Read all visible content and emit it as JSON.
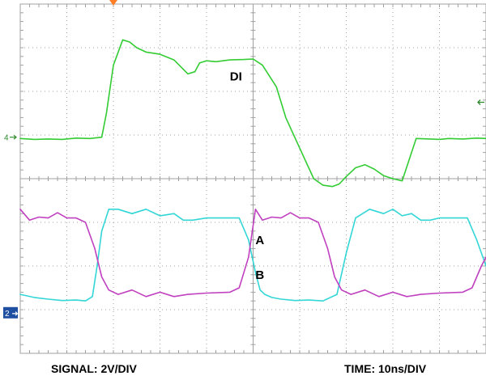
{
  "chart_data": {
    "type": "line",
    "screen": {
      "x_divisions": 10,
      "y_divisions": 8,
      "x_range_ns": [
        0,
        100
      ],
      "y_range_div": [
        0,
        8
      ],
      "grid": true,
      "grid_color": "#a0a0a0",
      "background": "#ffffff"
    },
    "channel_markers": [
      {
        "id": "channel-4-marker",
        "label": "4",
        "level_div": 4.95,
        "color": "#2a8a2a",
        "boxed": false
      },
      {
        "id": "channel-2-marker",
        "label": "2",
        "level_div": 0.93,
        "color": "#ffffff",
        "box_color": "#1f4fa0",
        "boxed": true
      }
    ],
    "trigger_marker": {
      "time_ns": 20,
      "color": "#ff7f27"
    },
    "right_arrow_marker": {
      "level_div": 5.75,
      "color": "#2a8a2a"
    },
    "series": [
      {
        "name": "DI",
        "color": "#33cc33",
        "x": [
          0,
          3,
          6,
          9,
          12,
          15,
          17.5,
          18.5,
          20,
          22,
          23.5,
          25,
          27,
          30,
          33,
          36,
          37.5,
          38.5,
          40,
          42,
          45,
          48,
          50,
          52,
          55,
          57,
          60,
          63,
          65,
          67,
          68.5,
          70,
          72,
          74,
          76,
          78,
          80,
          82,
          85,
          88,
          90,
          92,
          95,
          98,
          100
        ],
        "y": [
          4.92,
          4.9,
          4.91,
          4.9,
          4.93,
          4.92,
          4.95,
          5.5,
          6.6,
          7.18,
          7.13,
          7.0,
          6.9,
          6.85,
          6.72,
          6.4,
          6.45,
          6.65,
          6.7,
          6.68,
          6.72,
          6.73,
          6.74,
          6.6,
          6.1,
          5.4,
          4.7,
          4.0,
          3.85,
          3.82,
          3.88,
          4.05,
          4.25,
          4.32,
          4.22,
          4.07,
          4.0,
          3.95,
          4.92,
          4.91,
          4.9,
          4.92,
          4.91,
          4.93,
          4.92
        ]
      },
      {
        "name": "A",
        "color": "#33d6d6",
        "x": [
          0,
          3,
          6,
          9,
          12,
          14,
          15.5,
          16.5,
          17.5,
          19,
          21,
          24,
          27,
          30,
          33,
          35,
          37,
          40,
          43,
          45,
          47,
          49,
          50.5,
          51.5,
          52.5,
          54,
          56,
          59,
          62,
          65,
          68,
          70,
          72,
          75,
          78,
          80,
          82,
          84,
          86,
          88,
          90,
          92,
          94,
          96,
          98,
          100
        ],
        "y": [
          1.35,
          1.28,
          1.24,
          1.21,
          1.22,
          1.2,
          1.3,
          2.0,
          2.8,
          3.3,
          3.3,
          3.2,
          3.3,
          3.15,
          3.2,
          3.05,
          3.05,
          3.1,
          3.1,
          3.1,
          3.1,
          2.6,
          1.85,
          1.45,
          1.35,
          1.28,
          1.24,
          1.21,
          1.22,
          1.2,
          1.35,
          2.3,
          3.1,
          3.3,
          3.2,
          3.3,
          3.15,
          3.2,
          3.05,
          3.05,
          3.1,
          3.1,
          3.1,
          3.1,
          2.6,
          2.0
        ]
      },
      {
        "name": "B",
        "color": "#c040c0",
        "x": [
          0,
          2,
          4,
          6,
          8,
          10,
          12,
          14,
          16,
          17.5,
          19,
          21,
          24,
          27,
          30,
          33,
          36,
          40,
          45,
          47,
          49,
          50.5,
          52,
          54,
          56,
          58,
          60,
          62,
          64,
          66,
          67.5,
          69,
          71,
          74,
          77,
          80,
          83,
          86,
          90,
          95,
          97,
          99,
          100
        ],
        "y": [
          3.3,
          3.05,
          3.12,
          3.1,
          3.22,
          3.1,
          3.1,
          3.0,
          2.4,
          1.75,
          1.45,
          1.35,
          1.45,
          1.3,
          1.4,
          1.3,
          1.35,
          1.38,
          1.4,
          1.5,
          2.2,
          3.3,
          3.05,
          3.12,
          3.1,
          3.22,
          3.1,
          3.1,
          3.0,
          2.4,
          1.75,
          1.45,
          1.35,
          1.45,
          1.3,
          1.4,
          1.3,
          1.35,
          1.38,
          1.4,
          1.5,
          2.0,
          2.2
        ]
      }
    ],
    "annotations": [
      {
        "text": "DI",
        "time_ns": 45,
        "level_div": 6.25
      },
      {
        "text": "A",
        "time_ns": 50.5,
        "level_div": 2.5
      },
      {
        "text": "B",
        "time_ns": 50.5,
        "level_div": 1.7
      }
    ]
  },
  "footer": {
    "signal_label": "SIGNAL: 2V/DIV",
    "time_label": "TIME: 10ns/DIV"
  }
}
